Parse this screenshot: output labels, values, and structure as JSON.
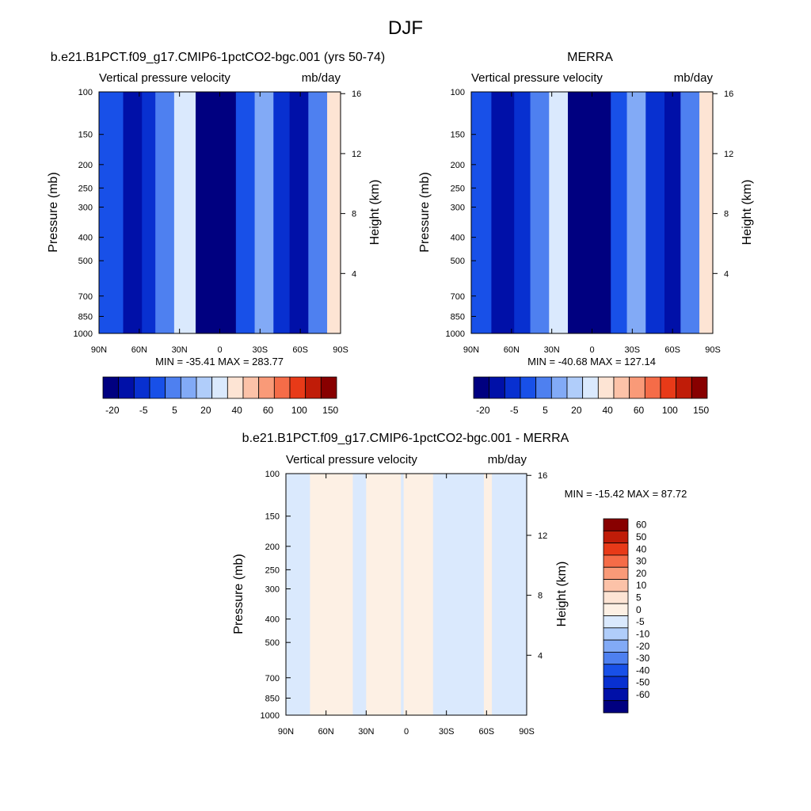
{
  "page_title": "DJF",
  "chart_data": [
    {
      "id": "model",
      "type": "heatmap",
      "title": "b.e21.B1PCT.f09_g17.CMIP6-1pctCO2-bgc.001 (yrs 50-74)",
      "left_label": "Vertical pressure velocity",
      "right_label": "mb/day",
      "ylabel": "Pressure (mb)",
      "y2label": "Height (km)",
      "x_ticks": [
        "90N",
        "60N",
        "30N",
        "0",
        "30S",
        "60S",
        "90S"
      ],
      "x_values": [
        90,
        60,
        30,
        0,
        -30,
        -60,
        -90
      ],
      "y_ticks": [
        "100",
        "150",
        "200",
        "250",
        "300",
        "400",
        "500",
        "700",
        "850",
        "1000"
      ],
      "y_values": [
        100,
        150,
        200,
        250,
        300,
        400,
        500,
        700,
        850,
        1000
      ],
      "y2_ticks": [
        "16",
        "12",
        "8",
        "4"
      ],
      "y2_values": [
        16,
        12,
        8,
        4
      ],
      "ylim": [
        1000,
        100
      ],
      "y_scale": "log",
      "xlim": [
        90,
        -90
      ],
      "min_text": "MIN = -35.41  MAX = 283.77",
      "colorbar": {
        "orientation": "horizontal",
        "labels": [
          "-20",
          "-5",
          "5",
          "20",
          "40",
          "60",
          "100",
          "150"
        ],
        "colors": [
          "#000080",
          "#0010a8",
          "#0830d0",
          "#1850e8",
          "#4e80f0",
          "#82aaf6",
          "#b0cdfa",
          "#dae9fd",
          "#fde4d4",
          "#fcc2a8",
          "#f99a78",
          "#f56c48",
          "#e83a18",
          "#c01c08",
          "#880000"
        ]
      },
      "bands": [
        {
          "x": [
            90,
            72
          ],
          "value": -5
        },
        {
          "x": [
            72,
            58
          ],
          "value": -20
        },
        {
          "x": [
            58,
            48
          ],
          "value": -10
        },
        {
          "x": [
            48,
            34
          ],
          "value": 0
        },
        {
          "x": [
            34,
            18
          ],
          "value": 20
        },
        {
          "x": [
            18,
            4
          ],
          "value": -30
        },
        {
          "x": [
            4,
            -12
          ],
          "value": -35
        },
        {
          "x": [
            -12,
            -26
          ],
          "value": -5
        },
        {
          "x": [
            -26,
            -40
          ],
          "value": 5
        },
        {
          "x": [
            -40,
            -52
          ],
          "value": -10
        },
        {
          "x": [
            -52,
            -66
          ],
          "value": -20
        },
        {
          "x": [
            -66,
            -80
          ],
          "value": 0
        },
        {
          "x": [
            -80,
            -90
          ],
          "value": 30
        }
      ]
    },
    {
      "id": "obs",
      "type": "heatmap",
      "title": "MERRA",
      "left_label": "Vertical pressure velocity",
      "right_label": "mb/day",
      "ylabel": "Pressure (mb)",
      "y2label": "Height (km)",
      "x_ticks": [
        "90N",
        "60N",
        "30N",
        "0",
        "30S",
        "60S",
        "90S"
      ],
      "x_values": [
        90,
        60,
        30,
        0,
        -30,
        -60,
        -90
      ],
      "y_ticks": [
        "100",
        "150",
        "200",
        "250",
        "300",
        "400",
        "500",
        "700",
        "850",
        "1000"
      ],
      "y_values": [
        100,
        150,
        200,
        250,
        300,
        400,
        500,
        700,
        850,
        1000
      ],
      "y2_ticks": [
        "16",
        "12",
        "8",
        "4"
      ],
      "y2_values": [
        16,
        12,
        8,
        4
      ],
      "ylim": [
        1000,
        100
      ],
      "y_scale": "log",
      "xlim": [
        90,
        -90
      ],
      "min_text": "MIN = -40.68  MAX = 127.14",
      "colorbar": {
        "orientation": "horizontal",
        "labels": [
          "-20",
          "-5",
          "5",
          "20",
          "40",
          "60",
          "100",
          "150"
        ],
        "colors": [
          "#000080",
          "#0010a8",
          "#0830d0",
          "#1850e8",
          "#4e80f0",
          "#82aaf6",
          "#b0cdfa",
          "#dae9fd",
          "#fde4d4",
          "#fcc2a8",
          "#f99a78",
          "#f56c48",
          "#e83a18",
          "#c01c08",
          "#880000"
        ]
      },
      "bands": [
        {
          "x": [
            90,
            75
          ],
          "value": -5
        },
        {
          "x": [
            75,
            58
          ],
          "value": -25
        },
        {
          "x": [
            58,
            46
          ],
          "value": -10
        },
        {
          "x": [
            46,
            32
          ],
          "value": 0
        },
        {
          "x": [
            32,
            18
          ],
          "value": 20
        },
        {
          "x": [
            18,
            4
          ],
          "value": -30
        },
        {
          "x": [
            4,
            -14
          ],
          "value": -38
        },
        {
          "x": [
            -14,
            -26
          ],
          "value": -5
        },
        {
          "x": [
            -26,
            -40
          ],
          "value": 5
        },
        {
          "x": [
            -40,
            -54
          ],
          "value": -10
        },
        {
          "x": [
            -54,
            -66
          ],
          "value": -25
        },
        {
          "x": [
            -66,
            -80
          ],
          "value": 0
        },
        {
          "x": [
            -80,
            -90
          ],
          "value": 30
        }
      ]
    },
    {
      "id": "diff",
      "type": "heatmap",
      "title": "b.e21.B1PCT.f09_g17.CMIP6-1pctCO2-bgc.001 - MERRA",
      "left_label": "Vertical pressure velocity",
      "right_label": "mb/day",
      "ylabel": "Pressure (mb)",
      "y2label": "Height (km)",
      "x_ticks": [
        "90N",
        "60N",
        "30N",
        "0",
        "30S",
        "60S",
        "90S"
      ],
      "x_values": [
        90,
        60,
        30,
        0,
        -30,
        -60,
        -90
      ],
      "y_ticks": [
        "100",
        "150",
        "200",
        "250",
        "300",
        "400",
        "500",
        "700",
        "850",
        "1000"
      ],
      "y_values": [
        100,
        150,
        200,
        250,
        300,
        400,
        500,
        700,
        850,
        1000
      ],
      "y2_ticks": [
        "16",
        "12",
        "8",
        "4"
      ],
      "y2_values": [
        16,
        12,
        8,
        4
      ],
      "ylim": [
        1000,
        100
      ],
      "y_scale": "log",
      "xlim": [
        90,
        -90
      ],
      "min_text": "MIN = -15.42  MAX =  87.72",
      "colorbar": {
        "orientation": "vertical",
        "labels": [
          "60",
          "50",
          "40",
          "30",
          "20",
          "10",
          "5",
          "0",
          "-5",
          "-10",
          "-20",
          "-30",
          "-40",
          "-50",
          "-60"
        ],
        "colors": [
          "#880000",
          "#c01c08",
          "#e83a18",
          "#f56c48",
          "#f99a78",
          "#fcc2a8",
          "#fde4d4",
          "#fdf0e4",
          "#dae9fd",
          "#b0cdfa",
          "#82aaf6",
          "#4e80f0",
          "#1850e8",
          "#0830d0",
          "#0010a8",
          "#000080"
        ]
      },
      "bands": [
        {
          "x": [
            90,
            72
          ],
          "value": -2
        },
        {
          "x": [
            72,
            40
          ],
          "value": 2
        },
        {
          "x": [
            40,
            30
          ],
          "value": -2
        },
        {
          "x": [
            30,
            4
          ],
          "value": 2
        },
        {
          "x": [
            4,
            2
          ],
          "value": -2
        },
        {
          "x": [
            2,
            -20
          ],
          "value": 2
        },
        {
          "x": [
            -20,
            -58
          ],
          "value": -2
        },
        {
          "x": [
            -58,
            -64
          ],
          "value": 2
        },
        {
          "x": [
            -64,
            -90
          ],
          "value": -2
        }
      ]
    }
  ]
}
